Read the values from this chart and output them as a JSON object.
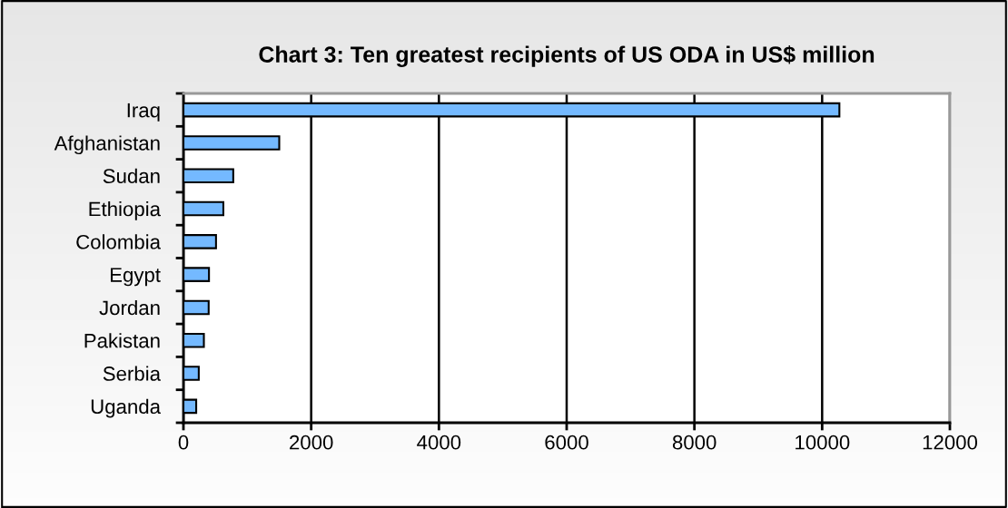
{
  "chart_data": {
    "type": "bar",
    "orientation": "horizontal",
    "title": "Chart 3: Ten greatest recipients of US ODA in US$ million",
    "categories": [
      "Iraq",
      "Afghanistan",
      "Sudan",
      "Ethiopia",
      "Colombia",
      "Egypt",
      "Jordan",
      "Pakistan",
      "Serbia",
      "Uganda"
    ],
    "values": [
      10270,
      1500,
      780,
      625,
      510,
      400,
      395,
      320,
      240,
      200
    ],
    "color": "#74b9ff",
    "xlim": [
      0,
      12000
    ],
    "xticks": [
      0,
      2000,
      4000,
      6000,
      8000,
      10000,
      12000
    ],
    "grid": "x",
    "legend": false
  }
}
